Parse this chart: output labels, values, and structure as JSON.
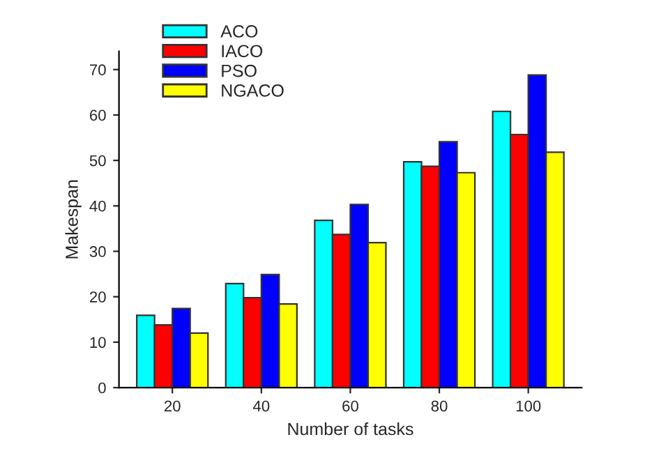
{
  "chart_data": {
    "type": "bar",
    "xlabel": "Number of tasks",
    "ylabel": "Makespan",
    "categories": [
      "20",
      "40",
      "60",
      "80",
      "100"
    ],
    "series": [
      {
        "name": "ACO",
        "color": "#00ffff",
        "values": [
          15.9,
          22.9,
          36.8,
          49.7,
          60.8
        ]
      },
      {
        "name": "IACO",
        "color": "#ff0000",
        "values": [
          13.8,
          19.8,
          33.7,
          48.7,
          55.7
        ]
      },
      {
        "name": "PSO",
        "color": "#0000ff",
        "values": [
          17.4,
          24.9,
          40.3,
          54.1,
          68.8
        ]
      },
      {
        "name": "NGACO",
        "color": "#ffff00",
        "values": [
          12.0,
          18.4,
          31.9,
          47.3,
          51.8
        ]
      }
    ],
    "ylim": [
      0,
      74
    ],
    "yticks": [
      0,
      10,
      20,
      30,
      40,
      50,
      60,
      70
    ],
    "grid": false,
    "legend": "top left"
  }
}
